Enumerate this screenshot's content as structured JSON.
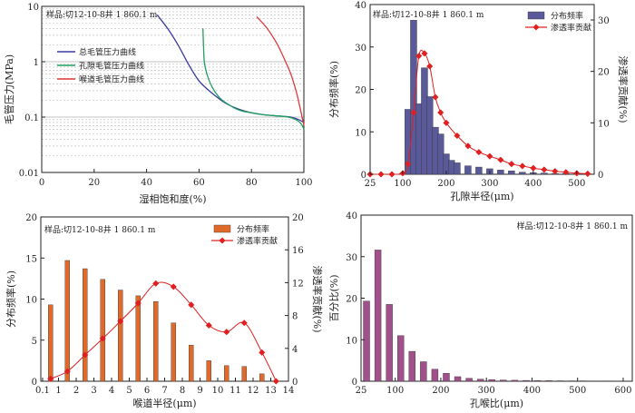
{
  "colors": {
    "bar_blue": "#5a5a9a",
    "bar_orange": "#e06a2a",
    "bar_purple": "#a0508a",
    "red_line": "#e02020",
    "curve_total": "#3a3aa0",
    "curve_pore": "#20a060",
    "curve_throat": "#e03a3a"
  },
  "chart_data": [
    {
      "id": "capillary",
      "type": "line",
      "sample_label": "样品:切12-10-8井  1 860.1 m",
      "xlabel": "湿相饱和度(%)",
      "ylabel": "毛管压力(MPa)",
      "x_ticks": [
        "0",
        "20",
        "40",
        "60",
        "80",
        "100"
      ],
      "y_ticks": [
        "0.01",
        "0.1",
        "1",
        "10"
      ],
      "xlim": [
        0,
        100
      ],
      "ylim": [
        0.01,
        10
      ],
      "y_scale": "log",
      "legend_position": "middle-left",
      "series": [
        {
          "name": "总毛管压力曲线",
          "color_key": "curve_total",
          "x": [
            44,
            48,
            52,
            56,
            60,
            65,
            70,
            75,
            80,
            85,
            90,
            95,
            98,
            100
          ],
          "y": [
            7,
            4,
            2,
            0.9,
            0.45,
            0.27,
            0.18,
            0.14,
            0.12,
            0.11,
            0.105,
            0.1,
            0.09,
            0.08
          ]
        },
        {
          "name": "孔隙毛管压力曲线",
          "color_key": "curve_pore",
          "x": [
            61.5,
            61.7,
            62,
            63,
            65,
            68,
            72,
            76,
            80,
            85,
            90,
            94,
            97,
            99,
            100
          ],
          "y": [
            4,
            2,
            1,
            0.6,
            0.35,
            0.22,
            0.16,
            0.13,
            0.12,
            0.11,
            0.105,
            0.1,
            0.09,
            0.075,
            0.06
          ]
        },
        {
          "name": "喉道毛管压力曲线",
          "color_key": "curve_throat",
          "x": [
            82,
            86,
            90,
            93,
            95,
            97,
            98.5,
            99.5,
            100
          ],
          "y": [
            6.5,
            4,
            2,
            1,
            0.6,
            0.3,
            0.15,
            0.09,
            0.07
          ]
        }
      ]
    },
    {
      "id": "pore",
      "type": "bar",
      "sample_label": "样品:切12-10-8井  1 860.1 m",
      "xlabel": "孔隙半径(μm)",
      "ylabel": "分布频率(%)",
      "y2label": "渗透率贡献(%)",
      "x_ticks": [
        "25",
        "100",
        "200",
        "300",
        "400",
        "500"
      ],
      "y_ticks": [
        "0",
        "10",
        "20",
        "30",
        "40"
      ],
      "y2_ticks": [
        "0",
        "10",
        "20",
        "30"
      ],
      "xlim": [
        25,
        540
      ],
      "ylim": [
        0,
        40
      ],
      "y2lim": [
        0,
        33
      ],
      "legend_position": "top-right",
      "series": [
        {
          "name": "分布频率",
          "kind": "bar",
          "color_key": "bar_blue",
          "x": [
            37,
            50,
            62,
            75,
            87,
            100,
            112,
            125,
            137,
            150,
            162,
            175,
            187,
            200,
            212,
            225,
            250,
            275,
            300,
            325,
            350,
            375,
            400,
            425,
            450,
            475,
            500,
            525
          ],
          "values": [
            0,
            0,
            0,
            0,
            0,
            0.2,
            15.3,
            36.3,
            16.6,
            25.1,
            18.3,
            11.1,
            9.5,
            4.8,
            3.3,
            2.7,
            2.0,
            1.7,
            1.3,
            1.0,
            0.8,
            0.5,
            0.4,
            0.3,
            0.2,
            0.15,
            0.1,
            0.1
          ]
        },
        {
          "name": "渗透率贡献",
          "kind": "line",
          "color_key": "red_line",
          "x": [
            25,
            50,
            75,
            100,
            112,
            125,
            137,
            150,
            162,
            175,
            187,
            200,
            225,
            250,
            275,
            300,
            325,
            350,
            375,
            400,
            425,
            450,
            475,
            500,
            525
          ],
          "values": [
            0,
            0,
            0,
            0.2,
            2,
            12,
            23,
            23.5,
            21,
            15,
            12,
            10,
            7.5,
            5.5,
            4.3,
            3.5,
            2.8,
            2,
            1.6,
            1.2,
            0.9,
            0.6,
            0.4,
            0.2,
            0.1
          ]
        }
      ]
    },
    {
      "id": "throat",
      "type": "bar",
      "sample_label": "样品:切12-10-8井  1 860.1 m",
      "xlabel": "喉道半径(μm)",
      "ylabel": "分布频率(%)",
      "y2label": "渗透率贡献(%)",
      "x_ticks": [
        "0.1",
        "1",
        "2",
        "3",
        "4",
        "5",
        "6",
        "7",
        "8",
        "9",
        "10",
        "11",
        "12",
        "13",
        "14"
      ],
      "y_ticks": [
        "0",
        "5",
        "10",
        "15",
        "20"
      ],
      "y2_ticks": [
        "0",
        "4",
        "8",
        "12",
        "16",
        "20"
      ],
      "xlim": [
        0,
        14
      ],
      "ylim": [
        0,
        20
      ],
      "y2lim": [
        0,
        20
      ],
      "legend_position": "top-right",
      "series": [
        {
          "name": "分布频率",
          "kind": "bar",
          "color_key": "bar_orange",
          "x": [
            0.55,
            1.5,
            2.5,
            3.5,
            4.5,
            5.5,
            6.5,
            7.5,
            8.5,
            9.5,
            10.5,
            11.5,
            12.5
          ],
          "values": [
            9.3,
            14.7,
            13.7,
            12.4,
            11.1,
            10.4,
            9.7,
            7.1,
            4.4,
            2.5,
            1.9,
            1.8,
            0.9
          ]
        },
        {
          "name": "渗透率贡献",
          "kind": "line",
          "color_key": "red_line",
          "x": [
            0.55,
            1.5,
            2.5,
            3.5,
            4.5,
            5.5,
            6.5,
            7.5,
            8.5,
            9.5,
            10.5,
            11.5,
            12.5,
            13.3
          ],
          "values": [
            0.3,
            1.2,
            3.2,
            5.2,
            7.3,
            9.5,
            11.9,
            11.5,
            9.3,
            6.8,
            6.0,
            7.1,
            3.5,
            0
          ]
        }
      ]
    },
    {
      "id": "ratio",
      "type": "bar",
      "sample_label": "样品:切12-10-8井  1 860.1 m",
      "xlabel": "孔喉比(μm)",
      "ylabel": "百分比(%)",
      "x_ticks": [
        "25",
        "100",
        "200",
        "300",
        "400",
        "500",
        "600"
      ],
      "y_ticks": [
        "0",
        "10",
        "20",
        "30",
        "40"
      ],
      "xlim": [
        25,
        620
      ],
      "ylim": [
        0,
        40
      ],
      "series": [
        {
          "name": "百分比",
          "kind": "bar",
          "color_key": "bar_purple",
          "x": [
            37,
            62,
            87,
            112,
            137,
            162,
            187,
            212,
            237,
            262,
            287,
            312,
            337,
            362,
            387,
            412,
            437,
            462,
            487,
            512,
            537,
            562,
            587,
            612
          ],
          "values": [
            19.3,
            31.6,
            18.5,
            11,
            7.2,
            4.7,
            2.9,
            1.9,
            1.1,
            0.7,
            0.5,
            0.4,
            0.3,
            0.25,
            0.2,
            0.18,
            0.15,
            0.12,
            0.1,
            0.1,
            0.08,
            0.08,
            0.07,
            0.07
          ]
        }
      ]
    }
  ]
}
